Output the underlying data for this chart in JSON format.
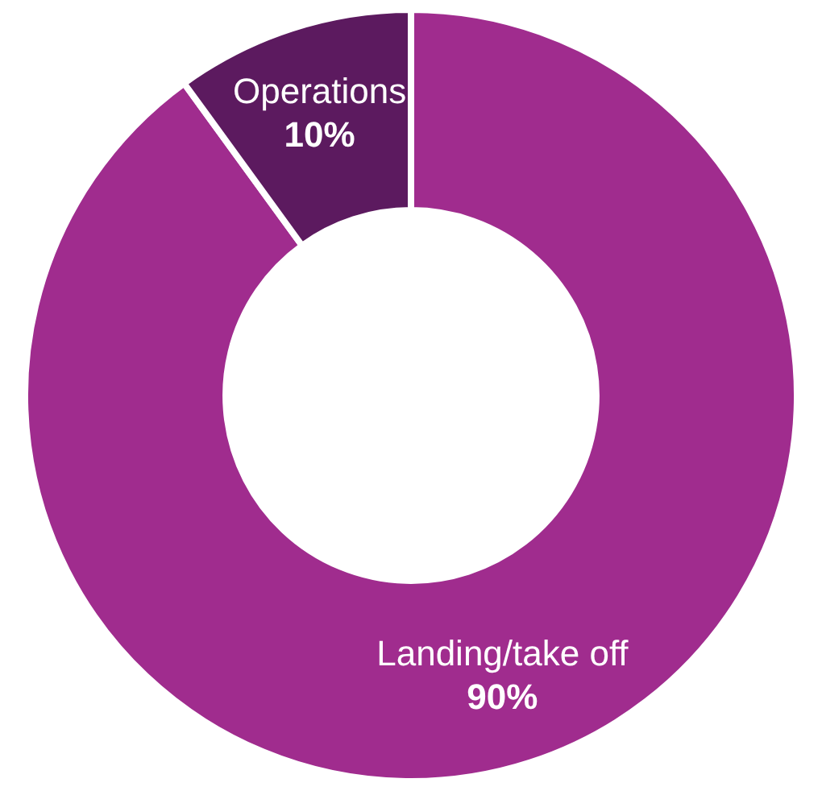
{
  "chart_data": {
    "type": "donut",
    "categories": [
      "Landing/take off",
      "Operations"
    ],
    "values": [
      90,
      10
    ],
    "colors": [
      "#a02c8e",
      "#5c1a5f"
    ],
    "value_labels": [
      "90%",
      "10%"
    ],
    "legend": false
  }
}
